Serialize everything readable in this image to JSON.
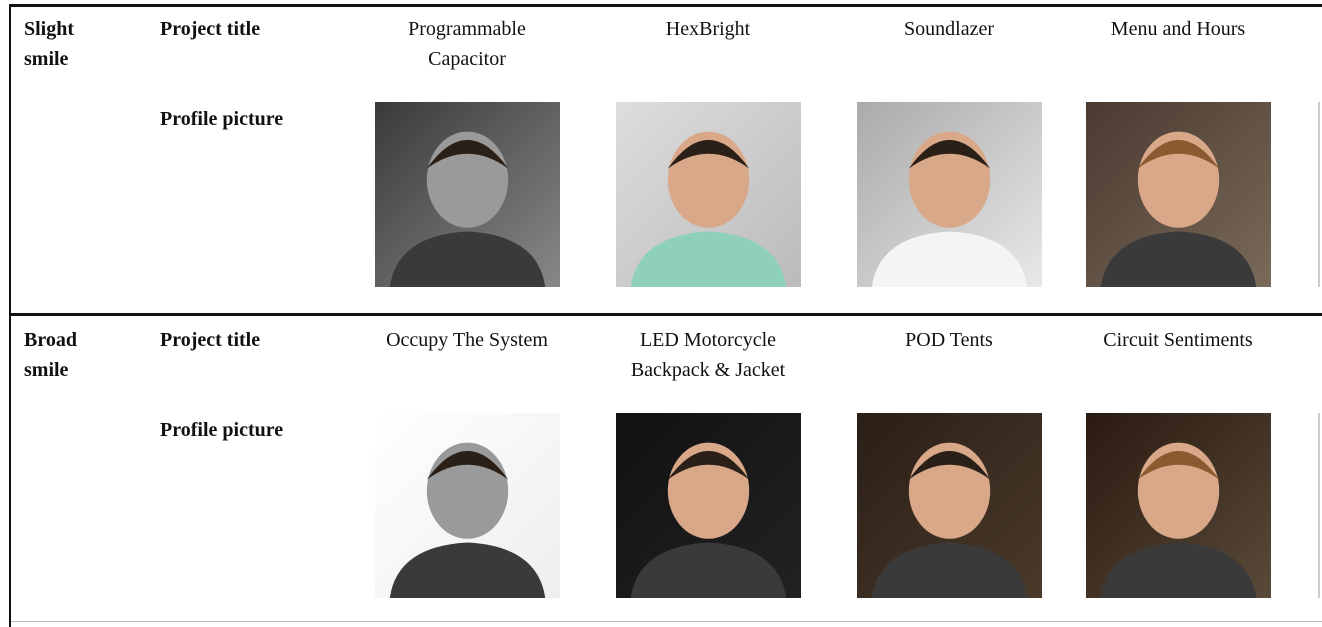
{
  "table": {
    "groups": [
      {
        "group": [
          "Slight",
          "smile"
        ],
        "title_label": "Project title",
        "picture_label": "Profile picture",
        "projects": [
          [
            "Programmable",
            "Capacitor"
          ],
          [
            "HexBright"
          ],
          [
            "Soundlazer"
          ],
          [
            "Menu and Hours"
          ]
        ]
      },
      {
        "group": [
          "Broad",
          "smile"
        ],
        "title_label": "Project title",
        "picture_label": "Profile picture",
        "projects": [
          [
            "Occupy The System"
          ],
          [
            "LED Motorcycle",
            "Backpack & Jacket"
          ],
          [
            "POD Tents"
          ],
          [
            "Circuit Sentiments"
          ]
        ]
      }
    ]
  }
}
